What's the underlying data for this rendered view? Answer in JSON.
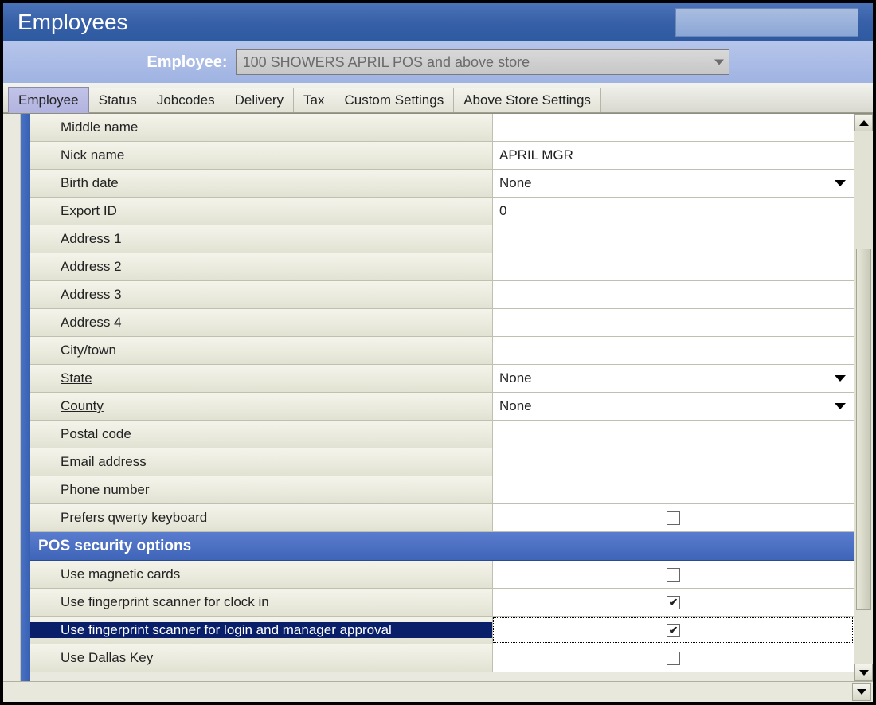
{
  "window": {
    "title": "Employees",
    "sub_label": "Employee:",
    "employee_selected": "100 SHOWERS APRIL POS and above store"
  },
  "tabs": [
    {
      "label": "Employee",
      "active": true
    },
    {
      "label": "Status",
      "active": false
    },
    {
      "label": "Jobcodes",
      "active": false
    },
    {
      "label": "Delivery",
      "active": false
    },
    {
      "label": "Tax",
      "active": false
    },
    {
      "label": "Custom Settings",
      "active": false
    },
    {
      "label": "Above Store Settings",
      "active": false
    }
  ],
  "fields": {
    "middle_name": {
      "label": "Middle name",
      "value": ""
    },
    "nick_name": {
      "label": "Nick name",
      "value": "APRIL MGR"
    },
    "birth_date": {
      "label": "Birth date",
      "value": "None"
    },
    "export_id": {
      "label": "Export ID",
      "value": "0"
    },
    "address1": {
      "label": "Address 1",
      "value": ""
    },
    "address2": {
      "label": "Address 2",
      "value": ""
    },
    "address3": {
      "label": "Address 3",
      "value": ""
    },
    "address4": {
      "label": "Address 4",
      "value": ""
    },
    "city": {
      "label": "City/town",
      "value": ""
    },
    "state": {
      "label": "State",
      "value": "None"
    },
    "county": {
      "label": "County",
      "value": "None"
    },
    "postal": {
      "label": "Postal code",
      "value": ""
    },
    "email": {
      "label": "Email address",
      "value": ""
    },
    "phone": {
      "label": "Phone number",
      "value": ""
    },
    "qwerty": {
      "label": "Prefers qwerty keyboard",
      "checked": false
    }
  },
  "section": {
    "title": "POS security options"
  },
  "security": {
    "magnetic": {
      "label": "Use magnetic cards",
      "checked": false
    },
    "fp_clockin": {
      "label": "Use fingerprint scanner for clock in",
      "checked": true
    },
    "fp_login": {
      "label": "Use fingerprint scanner for login and manager approval",
      "checked": true
    },
    "dallas": {
      "label": "Use Dallas Key",
      "checked": false
    }
  },
  "checkmark": "✔",
  "colors": {
    "title_grad_top": "#4a73b8",
    "title_grad_bottom": "#2d5aa0",
    "sub_grad_top": "#b6c5ea",
    "sub_grad_bottom": "#9fb3e2",
    "section_grad_top": "#5a7cce",
    "section_grad_bottom": "#3f65b8",
    "row_grad_top": "#f4f4eb",
    "row_grad_bottom": "#e2e2d3",
    "selected_bg": "#0a1f6a"
  },
  "scrollbar_thumb": {
    "top_pct": 22,
    "height_pct": 68
  }
}
